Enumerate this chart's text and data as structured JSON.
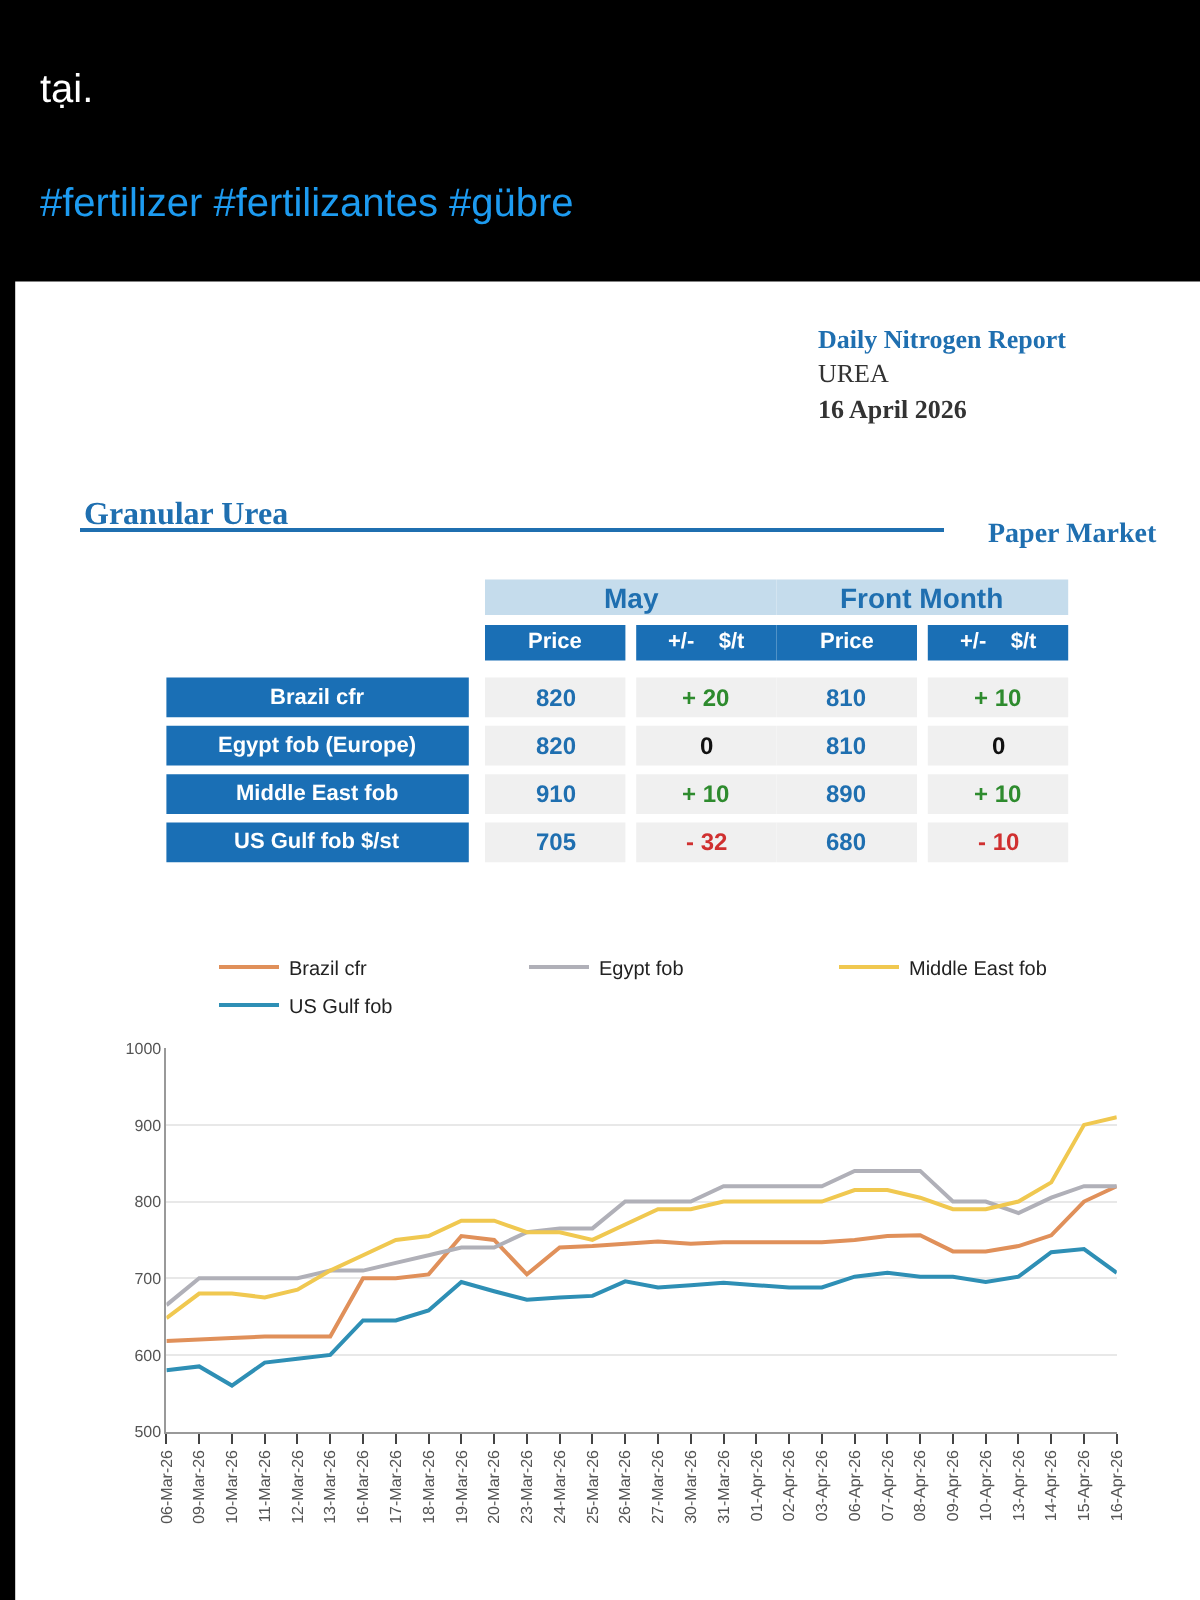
{
  "chart_data": [
    {
      "type": "other",
      "title": "Daily Nitrogen Report",
      "annotations": [
        "tại.",
        "#fertilizer #fertilizantes #gübre",
        "UREA",
        "16 April 2026",
        "Granular Urea",
        "Paper Market",
        "May",
        "Front Month",
        "Price",
        "+/-    $/t",
        "Price",
        "+/-    $/t",
        "Brazil cfr",
        "820",
        "+ 20",
        "810",
        "+ 10",
        "Egypt fob (Europe)",
        "820",
        "0",
        "810",
        "0",
        "Middle East fob",
        "910",
        "+ 10",
        "890",
        "+ 10",
        "US Gulf fob $/st",
        "705",
        "- 32",
        "680",
        "- 10"
      ]
    },
    {
      "type": "line",
      "categories": [
        "06-Mar-26",
        "09-Mar-26",
        "10-Mar-26",
        "11-Mar-26",
        "12-Mar-26",
        "13-Mar-26",
        "16-Mar-26",
        "17-Mar-26",
        "18-Mar-26",
        "19-Mar-26",
        "20-Mar-26",
        "23-Mar-26",
        "24-Mar-26",
        "25-Mar-26",
        "26-Mar-26",
        "27-Mar-26",
        "30-Mar-26",
        "31-Mar-26",
        "01-Apr-26",
        "02-Apr-26",
        "03-Apr-26",
        "06-Apr-26",
        "07-Apr-26",
        "08-Apr-26",
        "09-Apr-26",
        "10-Apr-26",
        "13-Apr-26",
        "14-Apr-26",
        "15-Apr-26",
        "16-Apr-26"
      ],
      "series": [
        {
          "name": "Brazil cfr",
          "color": "#e0905a",
          "values": [
            618,
            620,
            622,
            624,
            624,
            624,
            700,
            700,
            705,
            755,
            750,
            705,
            740,
            742,
            745,
            748,
            745,
            747,
            747,
            747,
            747,
            750,
            755,
            756,
            735,
            735,
            742,
            756,
            800,
            820
          ]
        },
        {
          "name": "Egypt fob",
          "color": "#b0b0b8",
          "values": [
            665,
            700,
            700,
            700,
            700,
            710,
            710,
            720,
            730,
            740,
            740,
            760,
            765,
            765,
            800,
            800,
            800,
            820,
            820,
            820,
            820,
            840,
            840,
            840,
            800,
            800,
            785,
            805,
            820,
            820
          ]
        },
        {
          "name": "Middle East fob",
          "color": "#f0c850",
          "values": [
            648,
            680,
            680,
            675,
            685,
            710,
            730,
            750,
            755,
            775,
            775,
            760,
            760,
            750,
            770,
            790,
            790,
            800,
            800,
            800,
            800,
            815,
            815,
            805,
            790,
            790,
            800,
            825,
            900,
            910
          ]
        },
        {
          "name": "US Gulf fob",
          "color": "#2e8fb5",
          "values": [
            580,
            585,
            560,
            590,
            595,
            600,
            645,
            645,
            658,
            695,
            683,
            672,
            675,
            677,
            696,
            688,
            691,
            694,
            691,
            688,
            688,
            702,
            707,
            702,
            702,
            695,
            702,
            734,
            738,
            707
          ]
        }
      ],
      "ylim": [
        500,
        1000
      ],
      "yticks": [
        500,
        600,
        700,
        800,
        900,
        1000
      ],
      "grid": "y",
      "legend": "top",
      "marker": "none",
      "line_style": "solid"
    }
  ]
}
